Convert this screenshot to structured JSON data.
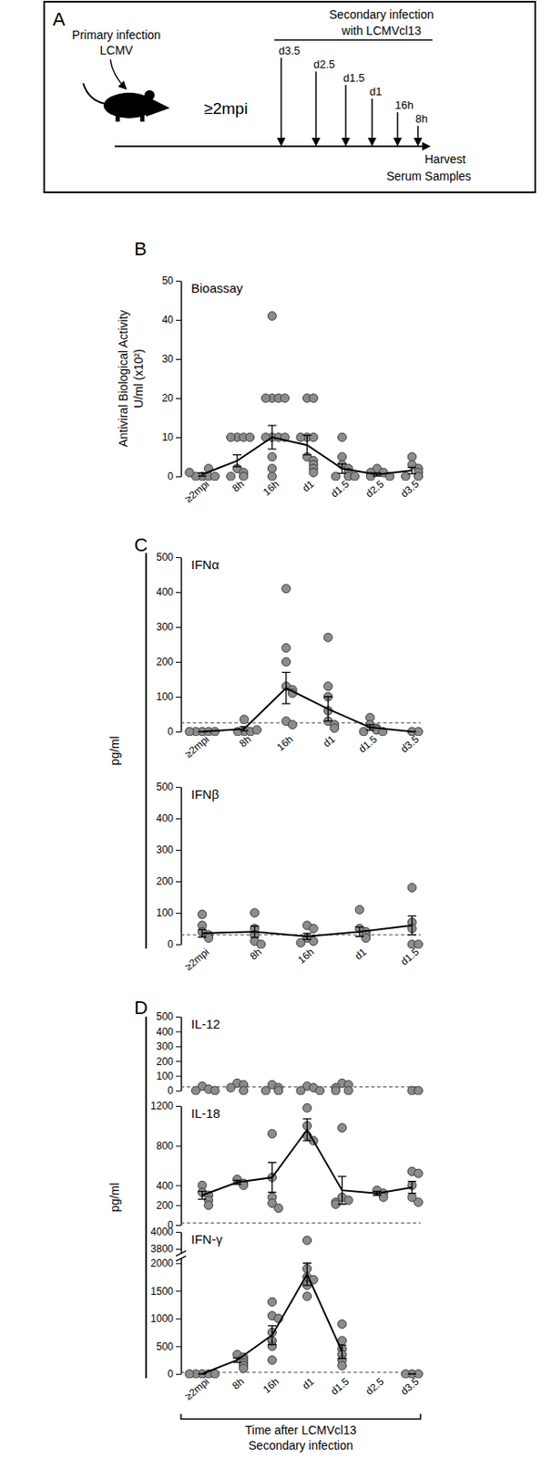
{
  "figure": {
    "panel_labels": [
      "A",
      "B",
      "C",
      "D"
    ],
    "diagram": {
      "primary_label": [
        "Primary infection",
        "LCMV"
      ],
      "interval": "≥2mpi",
      "secondary_label": [
        "Secondary infection",
        "with LCMVcl13"
      ],
      "timepoints": [
        "d3.5",
        "d2.5",
        "d1.5",
        "d1",
        "16h",
        "8h"
      ],
      "harvest_label": [
        "Harvest",
        "Serum  Samples"
      ]
    },
    "c_y_label": "pg/ml",
    "d_y_label": "pg/ml",
    "x_label": [
      "Time after LCMVcl13",
      "Secondary infection"
    ]
  },
  "chart_data": [
    {
      "type": "scatter",
      "title": "Bioassay",
      "y_label": [
        "Antiviral Biological Activity",
        "U/ml (x10²)"
      ],
      "categories": [
        "≥2mpi",
        "8h",
        "16h",
        "d1",
        "d1.5",
        "d2.5",
        "d3.5"
      ],
      "points": [
        [
          0,
          0,
          0,
          0,
          1,
          2
        ],
        [
          10,
          10,
          10,
          10,
          2,
          1,
          0,
          0
        ],
        [
          41,
          20,
          20,
          20,
          20,
          10,
          10,
          10,
          10,
          5,
          2,
          0
        ],
        [
          20,
          20,
          10,
          10,
          10,
          5,
          4,
          3,
          2,
          1
        ],
        [
          10,
          5,
          3,
          2,
          1,
          0,
          0,
          0
        ],
        [
          2,
          1,
          1,
          0,
          0
        ],
        [
          5,
          3,
          2,
          1,
          0,
          0
        ]
      ],
      "values": [
        0.5,
        4,
        10,
        8,
        2,
        0.5,
        1.5
      ],
      "errors": [
        0.4,
        1.5,
        3,
        2.5,
        1.2,
        0.4,
        0.8
      ],
      "color": "#8c8c8c",
      "marker": "circle",
      "line_style": "solid",
      "ylim": [
        0,
        50
      ],
      "yticks": [
        0,
        10,
        20,
        30,
        40,
        50
      ]
    },
    {
      "type": "scatter",
      "title": "IFNα",
      "categories": [
        "≥2mpi",
        "8h",
        "16h",
        "d1",
        "d1.5",
        "d3.5"
      ],
      "points": [
        [
          0,
          0,
          0,
          0,
          0
        ],
        [
          0,
          0,
          0,
          5,
          35
        ],
        [
          410,
          240,
          200,
          130,
          120,
          110,
          30,
          20
        ],
        [
          270,
          130,
          100,
          60,
          30,
          20,
          10
        ],
        [
          40,
          20,
          10,
          5,
          0,
          0
        ],
        [
          0,
          0
        ]
      ],
      "values": [
        0,
        8,
        125,
        65,
        12,
        0
      ],
      "errors": [
        0,
        6,
        45,
        35,
        8,
        0
      ],
      "detection_limit": 25,
      "color": "#8c8c8c",
      "marker": "circle",
      "line_style": "solid",
      "ylim": [
        0,
        500
      ],
      "yticks": [
        0,
        100,
        200,
        300,
        400,
        500
      ]
    },
    {
      "type": "scatter",
      "title": "IFNβ",
      "categories": [
        "≥2mpi",
        "8h",
        "16h",
        "d1",
        "d1.5"
      ],
      "points": [
        [
          95,
          60,
          40,
          30,
          20
        ],
        [
          100,
          50,
          30,
          10,
          0
        ],
        [
          60,
          50,
          20,
          10,
          5
        ],
        [
          110,
          50,
          40,
          30,
          20
        ],
        [
          180,
          70,
          50,
          0,
          0
        ]
      ],
      "values": [
        35,
        40,
        25,
        40,
        60
      ],
      "errors": [
        12,
        18,
        10,
        15,
        30
      ],
      "detection_limit": 30,
      "color": "#8c8c8c",
      "marker": "circle",
      "line_style": "solid",
      "ylim": [
        0,
        500
      ],
      "yticks": [
        0,
        100,
        200,
        300,
        400,
        500
      ]
    },
    {
      "type": "scatter",
      "title": "IL-12",
      "categories": [
        "≥2mpi",
        "8h",
        "16h",
        "d1",
        "d1.5",
        "d2.5",
        "d3.5"
      ],
      "points": [
        [
          30,
          10,
          0,
          0
        ],
        [
          50,
          40,
          20,
          0
        ],
        [
          40,
          20,
          0,
          0
        ],
        [
          30,
          20,
          0,
          0
        ],
        [
          50,
          40,
          20,
          0,
          0
        ],
        [],
        [
          0,
          0
        ]
      ],
      "detection_limit": 25,
      "tick_labels": "y",
      "color": "#8c8c8c",
      "marker": "circle",
      "ylim": [
        0,
        500
      ],
      "yticks": [
        0,
        100,
        200,
        300,
        400,
        500
      ]
    },
    {
      "type": "scatter",
      "title": "IL-18",
      "categories": [
        "≥2mpi",
        "8h",
        "16h",
        "d1",
        "d1.5",
        "d2.5",
        "d3.5"
      ],
      "points": [
        [
          400,
          330,
          300,
          250,
          200
        ],
        [
          460,
          420,
          400
        ],
        [
          920,
          480,
          280,
          220,
          170
        ],
        [
          1180,
          1000,
          900,
          850
        ],
        [
          980,
          280,
          250,
          230,
          210
        ],
        [
          350,
          320,
          280
        ],
        [
          540,
          520,
          400,
          280,
          230
        ]
      ],
      "values": [
        300,
        430,
        480,
        960,
        350,
        320,
        380
      ],
      "errors": [
        40,
        20,
        150,
        110,
        140,
        20,
        60
      ],
      "detection_limit": 20,
      "tick_labels": "y",
      "color": "#8c8c8c",
      "marker": "circle",
      "line_style": "solid",
      "ylim": [
        0,
        1200
      ],
      "yticks": [
        0,
        200,
        400,
        800,
        1200
      ]
    },
    {
      "type": "scatter",
      "title": "IFN-γ",
      "categories": [
        "≥2mpi",
        "8h",
        "16h",
        "d1",
        "d1.5",
        "d2.5",
        "d3.5"
      ],
      "points": [
        [
          0,
          0,
          0,
          0,
          0
        ],
        [
          350,
          300,
          250,
          200,
          150,
          100
        ],
        [
          1300,
          1050,
          1000,
          750,
          600,
          500,
          250
        ],
        [
          3900,
          1900,
          1750,
          1700,
          1600,
          1400
        ],
        [
          900,
          600,
          450,
          350,
          250,
          150
        ],
        [],
        [
          0,
          0,
          0
        ]
      ],
      "values": [
        0,
        250,
        700,
        1800,
        400,
        null,
        0
      ],
      "errors": [
        0,
        40,
        170,
        200,
        120,
        null,
        0
      ],
      "detection_limit": 30,
      "axis_break": [
        2000,
        3800
      ],
      "color": "#8c8c8c",
      "marker": "circle",
      "line_style": "solid",
      "ylim": [
        0,
        4000
      ],
      "yticks": [
        0,
        500,
        1000,
        1500,
        2000,
        3800,
        4000
      ]
    }
  ]
}
